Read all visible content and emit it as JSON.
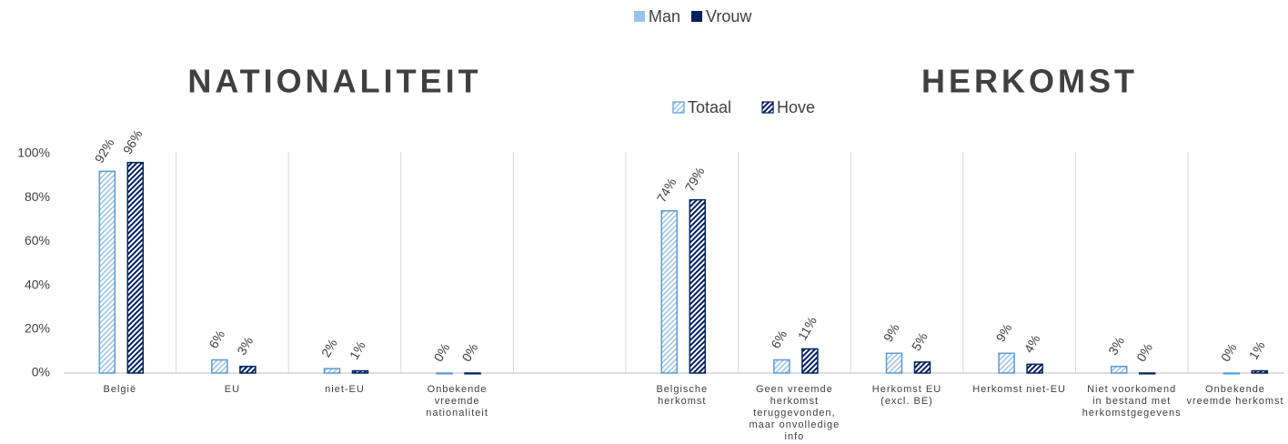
{
  "chart_data": {
    "type": "bar",
    "legend_top": [
      {
        "name": "Man",
        "color": "#9dc3e6"
      },
      {
        "name": "Vrouw",
        "color": "#002060"
      }
    ],
    "annotations": [
      "NATIONALITEIT",
      "HERKOMST"
    ],
    "categories": [
      "België",
      "EU",
      "niet-EU",
      "Onbekende vreemde nationaliteit",
      null,
      "Belgische herkomst",
      "Geen vreemde herkomst teruggevonden, maar onvolledige info",
      "Herkomst EU (excl. BE)",
      "Herkomst niet-EU",
      "Niet voorkomend in bestand met herkomstgegevens",
      "Onbekende vreemde herkomst"
    ],
    "series": [
      {
        "name": "Totaal",
        "color": "#5b9bd5",
        "values": [
          92,
          6,
          2,
          0,
          null,
          74,
          6,
          9,
          9,
          3,
          0
        ],
        "value_labels": [
          "92%",
          "6%",
          "2%",
          "0%",
          null,
          "74%",
          "6%",
          "9%",
          "9%",
          "3%",
          "0%"
        ]
      },
      {
        "name": "Hove",
        "color": "#002060",
        "values": [
          96,
          3,
          1,
          0,
          null,
          79,
          11,
          5,
          4,
          0,
          1
        ],
        "value_labels": [
          "96%",
          "3%",
          "1%",
          "0%",
          null,
          "79%",
          "11%",
          "5%",
          "4%",
          "0%",
          "1%"
        ]
      }
    ],
    "ylim": [
      0,
      100
    ],
    "yticks": [
      {
        "value": 0,
        "label": "0%"
      },
      {
        "value": 20,
        "label": "20%"
      },
      {
        "value": 40,
        "label": "40%"
      },
      {
        "value": 60,
        "label": "60%"
      },
      {
        "value": 80,
        "label": "80%"
      },
      {
        "value": 100,
        "label": "100%"
      }
    ]
  }
}
